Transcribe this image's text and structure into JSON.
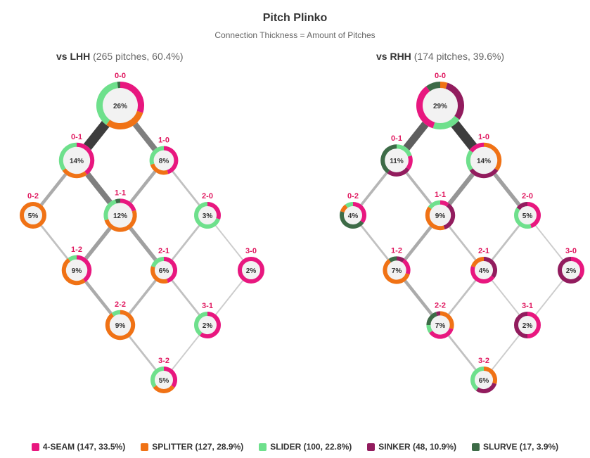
{
  "chart_data": {
    "type": "plinko",
    "title": "Pitch Plinko",
    "subtitle": "Connection Thickness = Amount of Pitches",
    "colors": {
      "4-SEAM": "#e8177f",
      "SPLITTER": "#f07215",
      "SLIDER": "#6ee08c",
      "SINKER": "#921c5e",
      "SLURVE": "#3d6b47"
    },
    "legend": [
      {
        "pitch": "4-SEAM",
        "label": "4-SEAM (147, 33.5%)"
      },
      {
        "pitch": "SPLITTER",
        "label": "SPLITTER (127, 28.9%)"
      },
      {
        "pitch": "SLIDER",
        "label": "SLIDER (100, 22.8%)"
      },
      {
        "pitch": "SINKER",
        "label": "SINKER (48, 10.9%)"
      },
      {
        "pitch": "SLURVE",
        "label": "SLURVE (17, 3.9%)"
      }
    ],
    "panels": [
      {
        "id": "lhh",
        "title_bold": "vs LHH",
        "title_rest": "(265 pitches, 60.4%)",
        "nodes": [
          {
            "count": "0-0",
            "pct": 26,
            "label": "26%",
            "mix": [
              [
                "4-SEAM",
                30
              ],
              [
                "SPLITTER",
                30
              ],
              [
                "SLIDER",
                38
              ],
              [
                "SLURVE",
                2
              ]
            ]
          },
          {
            "count": "0-1",
            "pct": 14,
            "label": "14%",
            "mix": [
              [
                "4-SEAM",
                40
              ],
              [
                "SPLITTER",
                25
              ],
              [
                "SLIDER",
                35
              ]
            ]
          },
          {
            "count": "1-0",
            "pct": 8,
            "label": "8%",
            "mix": [
              [
                "4-SEAM",
                45
              ],
              [
                "SPLITTER",
                25
              ],
              [
                "SLIDER",
                30
              ]
            ]
          },
          {
            "count": "0-2",
            "pct": 5,
            "label": "5%",
            "mix": [
              [
                "SPLITTER",
                100
              ]
            ]
          },
          {
            "count": "1-1",
            "pct": 12,
            "label": "12%",
            "mix": [
              [
                "4-SEAM",
                20
              ],
              [
                "SPLITTER",
                50
              ],
              [
                "SLIDER",
                25
              ],
              [
                "SLURVE",
                5
              ]
            ]
          },
          {
            "count": "2-0",
            "pct": 3,
            "label": "3%",
            "mix": [
              [
                "4-SEAM",
                30
              ],
              [
                "SLIDER",
                70
              ]
            ]
          },
          {
            "count": "1-2",
            "pct": 9,
            "label": "9%",
            "mix": [
              [
                "4-SEAM",
                40
              ],
              [
                "SPLITTER",
                50
              ],
              [
                "SLIDER",
                10
              ]
            ]
          },
          {
            "count": "2-1",
            "pct": 6,
            "label": "6%",
            "mix": [
              [
                "4-SEAM",
                45
              ],
              [
                "SPLITTER",
                35
              ],
              [
                "SLIDER",
                20
              ]
            ]
          },
          {
            "count": "3-0",
            "pct": 2,
            "label": "2%",
            "mix": [
              [
                "4-SEAM",
                100
              ]
            ]
          },
          {
            "count": "2-2",
            "pct": 9,
            "label": "9%",
            "mix": [
              [
                "SPLITTER",
                90
              ],
              [
                "SLIDER",
                10
              ]
            ]
          },
          {
            "count": "3-1",
            "pct": 2,
            "label": "2%",
            "mix": [
              [
                "4-SEAM",
                60
              ],
              [
                "SLIDER",
                40
              ]
            ]
          },
          {
            "count": "3-2",
            "pct": 5,
            "label": "5%",
            "mix": [
              [
                "4-SEAM",
                35
              ],
              [
                "SPLITTER",
                30
              ],
              [
                "SLIDER",
                35
              ]
            ]
          }
        ],
        "links": [
          {
            "from": "0-0",
            "to": "0-1",
            "weight": 14
          },
          {
            "from": "0-0",
            "to": "1-0",
            "weight": 8
          },
          {
            "from": "0-1",
            "to": "0-2",
            "weight": 4
          },
          {
            "from": "0-1",
            "to": "1-1",
            "weight": 8
          },
          {
            "from": "1-0",
            "to": "1-1",
            "weight": 4
          },
          {
            "from": "1-0",
            "to": "2-0",
            "weight": 2
          },
          {
            "from": "0-2",
            "to": "1-2",
            "weight": 2
          },
          {
            "from": "1-1",
            "to": "1-2",
            "weight": 5
          },
          {
            "from": "1-1",
            "to": "2-1",
            "weight": 5
          },
          {
            "from": "2-0",
            "to": "2-1",
            "weight": 2
          },
          {
            "from": "2-0",
            "to": "3-0",
            "weight": 1
          },
          {
            "from": "1-2",
            "to": "2-2",
            "weight": 4
          },
          {
            "from": "2-1",
            "to": "2-2",
            "weight": 3
          },
          {
            "from": "2-1",
            "to": "3-1",
            "weight": 2
          },
          {
            "from": "3-0",
            "to": "3-1",
            "weight": 1
          },
          {
            "from": "2-2",
            "to": "3-2",
            "weight": 2
          },
          {
            "from": "3-1",
            "to": "3-2",
            "weight": 1
          }
        ]
      },
      {
        "id": "rhh",
        "title_bold": "vs RHH",
        "title_rest": "(174 pitches, 39.6%)",
        "nodes": [
          {
            "count": "0-0",
            "pct": 29,
            "label": "29%",
            "mix": [
              [
                "SPLITTER",
                5
              ],
              [
                "SINKER",
                30
              ],
              [
                "SLIDER",
                20
              ],
              [
                "4-SEAM",
                35
              ],
              [
                "SLURVE",
                10
              ]
            ]
          },
          {
            "count": "0-1",
            "pct": 11,
            "label": "11%",
            "mix": [
              [
                "SLIDER",
                20
              ],
              [
                "4-SEAM",
                15
              ],
              [
                "SINKER",
                25
              ],
              [
                "SLURVE",
                40
              ]
            ]
          },
          {
            "count": "1-0",
            "pct": 14,
            "label": "14%",
            "mix": [
              [
                "SPLITTER",
                35
              ],
              [
                "SINKER",
                30
              ],
              [
                "SLIDER",
                20
              ],
              [
                "4-SEAM",
                15
              ]
            ]
          },
          {
            "count": "0-2",
            "pct": 4,
            "label": "4%",
            "mix": [
              [
                "4-SEAM",
                35
              ],
              [
                "SLURVE",
                45
              ],
              [
                "SPLITTER",
                10
              ],
              [
                "SLIDER",
                10
              ]
            ]
          },
          {
            "count": "1-1",
            "pct": 9,
            "label": "9%",
            "mix": [
              [
                "4-SEAM",
                10
              ],
              [
                "SINKER",
                35
              ],
              [
                "SPLITTER",
                40
              ],
              [
                "SLIDER",
                15
              ]
            ]
          },
          {
            "count": "2-0",
            "pct": 5,
            "label": "5%",
            "mix": [
              [
                "4-SEAM",
                45
              ],
              [
                "SLIDER",
                40
              ],
              [
                "SINKER",
                15
              ]
            ]
          },
          {
            "count": "1-2",
            "pct": 7,
            "label": "7%",
            "mix": [
              [
                "SINKER",
                10
              ],
              [
                "4-SEAM",
                20
              ],
              [
                "SPLITTER",
                60
              ],
              [
                "SLURVE",
                10
              ]
            ]
          },
          {
            "count": "2-1",
            "pct": 4,
            "label": "4%",
            "mix": [
              [
                "SINKER",
                35
              ],
              [
                "4-SEAM",
                45
              ],
              [
                "SPLITTER",
                20
              ]
            ]
          },
          {
            "count": "3-0",
            "pct": 2,
            "label": "2%",
            "mix": [
              [
                "4-SEAM",
                35
              ],
              [
                "SINKER",
                65
              ]
            ]
          },
          {
            "count": "2-2",
            "pct": 7,
            "label": "7%",
            "mix": [
              [
                "SPLITTER",
                30
              ],
              [
                "4-SEAM",
                35
              ],
              [
                "SLIDER",
                10
              ],
              [
                "SLURVE",
                20
              ],
              [
                "SINKER",
                5
              ]
            ]
          },
          {
            "count": "3-1",
            "pct": 2,
            "label": "2%",
            "mix": [
              [
                "4-SEAM",
                50
              ],
              [
                "SINKER",
                50
              ]
            ]
          },
          {
            "count": "3-2",
            "pct": 6,
            "label": "6%",
            "mix": [
              [
                "SPLITTER",
                30
              ],
              [
                "SINKER",
                30
              ],
              [
                "SLIDER",
                40
              ]
            ]
          }
        ],
        "links": [
          {
            "from": "0-0",
            "to": "0-1",
            "weight": 11
          },
          {
            "from": "0-0",
            "to": "1-0",
            "weight": 14
          },
          {
            "from": "0-1",
            "to": "0-2",
            "weight": 3
          },
          {
            "from": "0-1",
            "to": "1-1",
            "weight": 3
          },
          {
            "from": "1-0",
            "to": "1-1",
            "weight": 6
          },
          {
            "from": "1-0",
            "to": "2-0",
            "weight": 5
          },
          {
            "from": "0-2",
            "to": "1-2",
            "weight": 2
          },
          {
            "from": "1-1",
            "to": "1-2",
            "weight": 4
          },
          {
            "from": "1-1",
            "to": "2-1",
            "weight": 2
          },
          {
            "from": "2-0",
            "to": "2-1",
            "weight": 2
          },
          {
            "from": "2-0",
            "to": "3-0",
            "weight": 1
          },
          {
            "from": "1-2",
            "to": "2-2",
            "weight": 4
          },
          {
            "from": "2-1",
            "to": "2-2",
            "weight": 2
          },
          {
            "from": "2-1",
            "to": "3-1",
            "weight": 1
          },
          {
            "from": "3-0",
            "to": "3-1",
            "weight": 1
          },
          {
            "from": "2-2",
            "to": "3-2",
            "weight": 2
          },
          {
            "from": "3-1",
            "to": "3-2",
            "weight": 1
          }
        ]
      }
    ]
  }
}
